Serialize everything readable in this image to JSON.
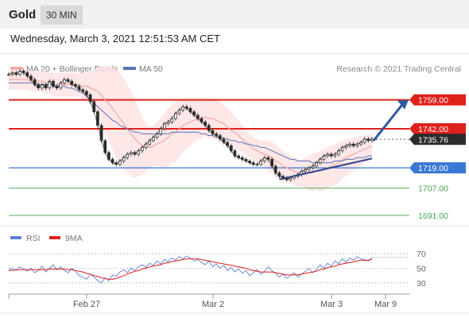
{
  "header": {
    "title": "Gold",
    "timeframe": "30 MIN",
    "timestamp": "Wednesday, March 3, 2021 12:51:53 AM CET"
  },
  "colors": {
    "ma20": "#f4a6a6",
    "bollinger_fill": "#fde3e3",
    "ma50": "#5b74b8",
    "price": "#2b2b2b",
    "resistance": "#e0201b",
    "support": "#3a78d6",
    "support_green": "#46a546",
    "trend": "#34478f",
    "arrow": "#2f5a9e",
    "rsi": "#5c7fd6",
    "rsi_ma": "#e0201b"
  },
  "chart_data": [
    {
      "type": "line",
      "name": "price",
      "legend": [
        "MA 20 + Bollinger Bands",
        "MA 50"
      ],
      "credit": "Research © 2021 Trading Central",
      "x_tick_labels": [
        "Feb 27",
        "Mar 2",
        "Mar 3",
        "Mar 9"
      ],
      "ylim": [
        1683,
        1771
      ],
      "levels": [
        {
          "value": 1759.0,
          "label": "1759.00",
          "kind": "resistance"
        },
        {
          "value": 1742.0,
          "label": "1742.00",
          "kind": "resistance"
        },
        {
          "value": 1735.76,
          "label": "1735.76",
          "kind": "last"
        },
        {
          "value": 1719.0,
          "label": "1719.00",
          "kind": "support"
        },
        {
          "value": 1707.0,
          "label": "1707.00",
          "kind": "support_green"
        },
        {
          "value": 1691.0,
          "label": "1691.00",
          "kind": "support_green"
        }
      ],
      "close": [
        1774,
        1775,
        1774,
        1776,
        1775,
        1773,
        1771,
        1768,
        1766,
        1768,
        1766,
        1770,
        1767,
        1766,
        1769,
        1771,
        1770,
        1768,
        1767,
        1765,
        1764,
        1762,
        1758,
        1752,
        1744,
        1735,
        1728,
        1724,
        1722,
        1721,
        1723,
        1725,
        1727,
        1728,
        1727,
        1729,
        1731,
        1733,
        1735,
        1737,
        1739,
        1742,
        1745,
        1746,
        1748,
        1751,
        1753,
        1755,
        1754,
        1752,
        1750,
        1748,
        1746,
        1744,
        1741,
        1739,
        1738,
        1736,
        1734,
        1732,
        1729,
        1726,
        1725,
        1724,
        1723,
        1722,
        1721,
        1721,
        1723,
        1725,
        1724,
        1720,
        1716,
        1714,
        1713,
        1712,
        1713,
        1714,
        1715,
        1717,
        1718,
        1719,
        1720,
        1722,
        1724,
        1726,
        1727,
        1726,
        1727,
        1729,
        1731,
        1732,
        1733,
        1732,
        1733,
        1734,
        1736,
        1735,
        1736
      ],
      "ma20": [
        1771,
        1771,
        1771,
        1771,
        1771,
        1771,
        1770,
        1770,
        1770,
        1770,
        1769,
        1769,
        1768,
        1768,
        1768,
        1768,
        1768,
        1768,
        1768,
        1768,
        1767,
        1767,
        1766,
        1765,
        1764,
        1762,
        1759,
        1757,
        1754,
        1751,
        1748,
        1745,
        1742,
        1739,
        1736,
        1734,
        1732,
        1731,
        1731,
        1732,
        1733,
        1734,
        1735,
        1737,
        1739,
        1740,
        1742,
        1744,
        1745,
        1746,
        1747,
        1748,
        1748,
        1749,
        1748,
        1748,
        1747,
        1746,
        1745,
        1743,
        1741,
        1740,
        1738,
        1736,
        1734,
        1732,
        1730,
        1729,
        1728,
        1727,
        1726,
        1725,
        1723,
        1722,
        1720,
        1719,
        1718,
        1717,
        1716,
        1716,
        1716,
        1716,
        1716,
        1717,
        1717,
        1718,
        1719,
        1720,
        1721,
        1722,
        1724,
        1725,
        1726,
        1727,
        1728,
        1729,
        1730,
        1731,
        1732
      ],
      "bb_upper": [
        1777,
        1777,
        1777,
        1777,
        1777,
        1777,
        1776,
        1776,
        1776,
        1776,
        1776,
        1775,
        1775,
        1775,
        1775,
        1775,
        1775,
        1775,
        1775,
        1775,
        1775,
        1775,
        1776,
        1777,
        1778,
        1779,
        1779,
        1779,
        1778,
        1777,
        1775,
        1772,
        1768,
        1764,
        1759,
        1754,
        1749,
        1745,
        1743,
        1744,
        1746,
        1748,
        1751,
        1754,
        1756,
        1758,
        1759,
        1760,
        1760,
        1760,
        1760,
        1760,
        1760,
        1760,
        1760,
        1760,
        1759,
        1758,
        1756,
        1754,
        1752,
        1749,
        1747,
        1744,
        1741,
        1739,
        1737,
        1736,
        1735,
        1735,
        1735,
        1734,
        1733,
        1731,
        1729,
        1727,
        1726,
        1725,
        1724,
        1724,
        1725,
        1726,
        1727,
        1728,
        1729,
        1730,
        1731,
        1732,
        1733,
        1734,
        1735,
        1736,
        1736,
        1737,
        1737,
        1738,
        1738,
        1739,
        1739
      ],
      "bb_lower": [
        1765,
        1765,
        1765,
        1765,
        1765,
        1765,
        1764,
        1764,
        1764,
        1764,
        1762,
        1763,
        1761,
        1761,
        1761,
        1761,
        1761,
        1761,
        1761,
        1761,
        1759,
        1759,
        1756,
        1753,
        1750,
        1745,
        1739,
        1735,
        1730,
        1725,
        1721,
        1718,
        1716,
        1714,
        1713,
        1714,
        1715,
        1717,
        1719,
        1720,
        1720,
        1720,
        1719,
        1720,
        1722,
        1722,
        1725,
        1728,
        1730,
        1732,
        1734,
        1736,
        1736,
        1738,
        1736,
        1736,
        1735,
        1734,
        1734,
        1732,
        1730,
        1731,
        1729,
        1728,
        1727,
        1725,
        1723,
        1722,
        1721,
        1719,
        1717,
        1716,
        1713,
        1713,
        1711,
        1711,
        1710,
        1709,
        1708,
        1708,
        1707,
        1706,
        1705,
        1706,
        1705,
        1706,
        1707,
        1708,
        1709,
        1710,
        1713,
        1714,
        1716,
        1717,
        1719,
        1720,
        1722,
        1723,
        1725
      ],
      "ma50": [
        1769,
        1769,
        1769,
        1769,
        1769,
        1769,
        1769,
        1769,
        1768,
        1768,
        1768,
        1768,
        1768,
        1767,
        1767,
        1767,
        1766,
        1766,
        1765,
        1764,
        1763,
        1761,
        1759,
        1757,
        1755,
        1753,
        1751,
        1749,
        1747,
        1746,
        1744,
        1743,
        1742,
        1741,
        1740,
        1740,
        1739,
        1739,
        1739,
        1739,
        1739,
        1739,
        1739,
        1739,
        1740,
        1740,
        1740,
        1740,
        1740,
        1740,
        1740,
        1740,
        1739,
        1739,
        1738,
        1738,
        1737,
        1737,
        1736,
        1736,
        1735,
        1735,
        1734,
        1734,
        1733,
        1733,
        1732,
        1732,
        1731,
        1731,
        1730,
        1729,
        1728,
        1727,
        1726,
        1725,
        1724,
        1724,
        1723,
        1723,
        1723,
        1723,
        1722,
        1722,
        1722,
        1722,
        1722,
        1722,
        1723,
        1723,
        1723,
        1724,
        1724,
        1724,
        1725,
        1725,
        1725,
        1726,
        1726
      ]
    },
    {
      "type": "line",
      "name": "rsi",
      "legend": [
        "RSI",
        "9MA"
      ],
      "ylim": [
        20,
        80
      ],
      "ytick_labels": [
        "70",
        "50",
        "30"
      ],
      "rsi": [
        48,
        50,
        47,
        52,
        49,
        46,
        50,
        44,
        47,
        53,
        45,
        50,
        55,
        48,
        52,
        47,
        44,
        50,
        46,
        40,
        38,
        35,
        42,
        38,
        33,
        30,
        37,
        33,
        41,
        39,
        45,
        48,
        44,
        50,
        47,
        52,
        55,
        51,
        57,
        54,
        60,
        56,
        62,
        59,
        64,
        61,
        66,
        63,
        67,
        64,
        60,
        62,
        58,
        55,
        60,
        52,
        56,
        50,
        54,
        47,
        51,
        45,
        49,
        43,
        47,
        40,
        44,
        48,
        42,
        46,
        52,
        47,
        43,
        38,
        42,
        36,
        40,
        44,
        38,
        42,
        46,
        50,
        44,
        48,
        55,
        50,
        57,
        53,
        60,
        56,
        63,
        58,
        64,
        61,
        66,
        63,
        62,
        60,
        65
      ],
      "rsi_ma": [
        47,
        47,
        48,
        48,
        48,
        48,
        48,
        48,
        48,
        48,
        48,
        49,
        49,
        49,
        49,
        49,
        48,
        48,
        47,
        46,
        45,
        43,
        42,
        40,
        39,
        37,
        36,
        35,
        35,
        36,
        38,
        40,
        42,
        44,
        46,
        47,
        49,
        50,
        52,
        53,
        54,
        55,
        57,
        58,
        59,
        60,
        61,
        62,
        63,
        63,
        63,
        63,
        62,
        61,
        60,
        59,
        58,
        57,
        56,
        55,
        54,
        53,
        52,
        51,
        50,
        48,
        47,
        46,
        45,
        45,
        45,
        45,
        44,
        43,
        42,
        41,
        41,
        41,
        41,
        42,
        43,
        44,
        45,
        46,
        48,
        49,
        51,
        52,
        53,
        55,
        56,
        57,
        58,
        59,
        60,
        61,
        61,
        61,
        62
      ]
    }
  ]
}
